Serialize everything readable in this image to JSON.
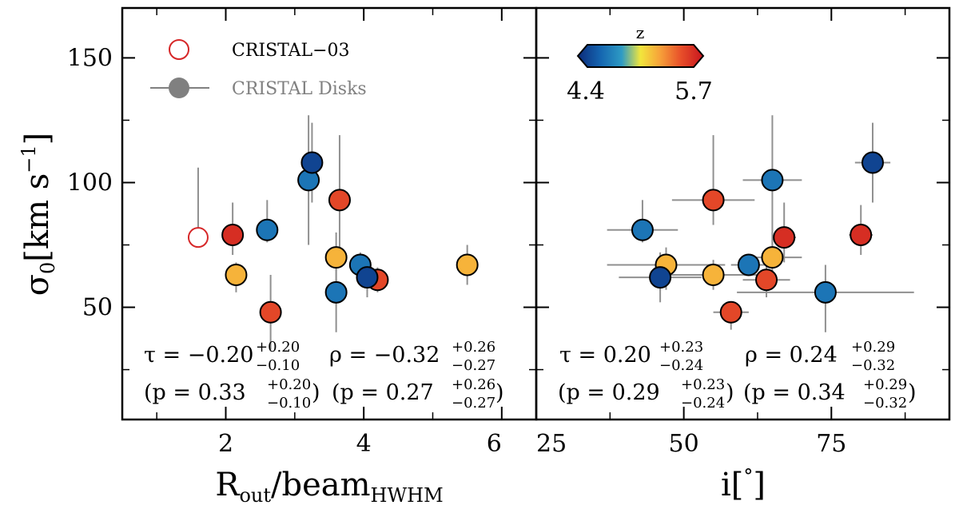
{
  "chart_data": [
    {
      "type": "scatter",
      "panel": "left",
      "xlabel": "R",
      "xlabel_sub": "out",
      "xlabel_mid": "/beam",
      "xlabel_sub2": "HWHM",
      "ylabel": "σ",
      "ylabel_sub": "0",
      "ylabel_unit": "[km s",
      "ylabel_unit_sup": "−1",
      "ylabel_unit_end": "]",
      "xlim": [
        0.5,
        6.5
      ],
      "ylim": [
        5,
        170
      ],
      "xticks": [
        2,
        4,
        6
      ],
      "xtick_labels": [
        "2",
        "4",
        "6"
      ],
      "yticks": [
        50,
        100,
        150
      ],
      "ytick_labels": [
        "50",
        "100",
        "150"
      ],
      "legend": {
        "entries": [
          {
            "label": "CRISTAL−03",
            "marker": "open-circle",
            "color": "#d62728"
          },
          {
            "label": "CRISTAL Disks",
            "marker": "filled-circle-errorbar",
            "color": "#808080"
          }
        ]
      },
      "annotations": {
        "tau": {
          "prefix": "τ = ",
          "value": "−0.20",
          "up": "+0.20",
          "down": "−0.10"
        },
        "rho": {
          "prefix": "ρ = ",
          "value": "−0.32",
          "up": "+0.26",
          "down": "−0.27"
        },
        "p_tau": {
          "prefix": "(p = ",
          "value": "0.33",
          "up": "+0.20",
          "down": "−0.10",
          "suffix": ")"
        },
        "p_rho": {
          "prefix": "(p = ",
          "value": "0.27",
          "up": "+0.26",
          "down": "−0.27",
          "suffix": ")"
        }
      },
      "cristal03": {
        "x": 1.6,
        "y": 78,
        "yerr_up": 28,
        "yerr_down": 0
      },
      "points": [
        {
          "x": 2.1,
          "y": 79,
          "z": 5.6,
          "yerr_up": 13,
          "yerr_down": 8
        },
        {
          "x": 2.15,
          "y": 63,
          "z": 5.2,
          "yerr_up": 5,
          "yerr_down": 7
        },
        {
          "x": 2.6,
          "y": 81,
          "z": 4.7,
          "yerr_up": 12,
          "yerr_down": 5
        },
        {
          "x": 2.65,
          "y": 48,
          "z": 5.5,
          "yerr_up": 15,
          "yerr_down": 15
        },
        {
          "x": 3.2,
          "y": 101,
          "z": 4.7,
          "yerr_up": 26,
          "yerr_down": 26
        },
        {
          "x": 3.25,
          "y": 108,
          "z": 4.5,
          "yerr_up": 16,
          "yerr_down": 16
        },
        {
          "x": 3.65,
          "y": 93,
          "z": 5.5,
          "yerr_up": 26,
          "yerr_down": 26
        },
        {
          "x": 3.6,
          "y": 70,
          "z": 5.2,
          "yerr_up": 10,
          "yerr_down": 10
        },
        {
          "x": 3.6,
          "y": 56,
          "z": 4.7,
          "yerr_up": 16,
          "yerr_down": 16
        },
        {
          "x": 3.95,
          "y": 67,
          "z": 4.7,
          "yerr_up": 5,
          "yerr_down": 5
        },
        {
          "x": 4.2,
          "y": 61,
          "z": 5.5,
          "yerr_up": 5,
          "yerr_down": 5
        },
        {
          "x": 4.05,
          "y": 62,
          "z": 4.5,
          "yerr_up": 8,
          "yerr_down": 8
        },
        {
          "x": 5.5,
          "y": 67,
          "z": 5.2,
          "yerr_up": 8,
          "yerr_down": 8
        }
      ]
    },
    {
      "type": "scatter",
      "panel": "right",
      "xlabel": "i[",
      "xlabel_deg": "°",
      "xlabel_end": "]",
      "xlim": [
        25,
        95
      ],
      "ylim": [
        5,
        170
      ],
      "xticks": [
        25,
        50,
        75
      ],
      "xtick_labels": [
        "25",
        "50",
        "75"
      ],
      "colorbar": {
        "label": "z",
        "min": 4.4,
        "max": 5.7,
        "min_label": "4.4",
        "max_label": "5.7"
      },
      "annotations": {
        "tau": {
          "prefix": "τ = ",
          "value": "0.20",
          "up": "+0.23",
          "down": "−0.24"
        },
        "rho": {
          "prefix": "ρ = ",
          "value": "0.24",
          "up": "+0.29",
          "down": "−0.32"
        },
        "p_tau": {
          "prefix": "(p = ",
          "value": "0.29",
          "up": "+0.23",
          "down": "−0.24",
          "suffix": ")"
        },
        "p_rho": {
          "prefix": "(p = ",
          "value": "0.34",
          "up": "+0.29",
          "down": "−0.32",
          "suffix": ")"
        }
      },
      "points": [
        {
          "x": 43,
          "y": 81,
          "z": 4.7,
          "xerr": 6,
          "yerr_up": 12,
          "yerr_down": 5
        },
        {
          "x": 47,
          "y": 67,
          "z": 5.2,
          "xerr": 10,
          "yerr_up": 7,
          "yerr_down": 10
        },
        {
          "x": 46,
          "y": 62,
          "z": 4.5,
          "xerr": 7,
          "yerr_up": 10,
          "yerr_down": 10
        },
        {
          "x": 55,
          "y": 93,
          "z": 5.5,
          "xerr": 7,
          "yerr_up": 26,
          "yerr_down": 10
        },
        {
          "x": 55,
          "y": 63,
          "z": 5.2,
          "xerr": 8,
          "yerr_up": 6,
          "yerr_down": 6
        },
        {
          "x": 58,
          "y": 48,
          "z": 5.5,
          "xerr": 3,
          "yerr_up": 3,
          "yerr_down": 7
        },
        {
          "x": 61,
          "y": 67,
          "z": 4.7,
          "xerr": 3,
          "yerr_up": 3,
          "yerr_down": 3
        },
        {
          "x": 64,
          "y": 61,
          "z": 5.5,
          "xerr": 4,
          "yerr_up": 7,
          "yerr_down": 7
        },
        {
          "x": 65,
          "y": 70,
          "z": 5.2,
          "xerr": 5,
          "yerr_up": 10,
          "yerr_down": 10
        },
        {
          "x": 65,
          "y": 101,
          "z": 4.7,
          "xerr": 5,
          "yerr_up": 26,
          "yerr_down": 26
        },
        {
          "x": 67,
          "y": 78,
          "z": 5.6,
          "xerr": 2,
          "yerr_up": 14,
          "yerr_down": 10
        },
        {
          "x": 74,
          "y": 56,
          "z": 4.7,
          "xerr": 15,
          "yerr_up": 11,
          "yerr_down": 16
        },
        {
          "x": 80,
          "y": 79,
          "z": 5.6,
          "xerr": 2,
          "yerr_up": 12,
          "yerr_down": 8
        },
        {
          "x": 82,
          "y": 108,
          "z": 4.5,
          "xerr": 3,
          "yerr_up": 16,
          "yerr_down": 16
        }
      ]
    }
  ]
}
